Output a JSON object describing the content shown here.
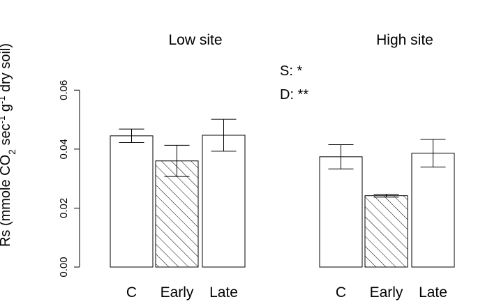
{
  "chart_data": {
    "type": "bar",
    "ylabel": {
      "main": "Rs (mmole CO",
      "sub": "2",
      "mid": " sec",
      "sup": "-1",
      "mid2": " g",
      "sup2": "-1",
      "end": " dry soil)"
    },
    "ylim": [
      0,
      0.07
    ],
    "yticks": [
      "0.00",
      "0.02",
      "0.04",
      "0.06"
    ],
    "ytick_values": [
      0,
      0.02,
      0.04,
      0.06
    ],
    "groups": [
      {
        "name": "Low site",
        "categories": [
          "C",
          "Early",
          "Late"
        ],
        "values": [
          0.0445,
          0.036,
          0.0447
        ],
        "err_low": [
          0.0422,
          0.0307,
          0.0393
        ],
        "err_high": [
          0.0468,
          0.0413,
          0.0501
        ],
        "hatched": [
          false,
          true,
          false
        ]
      },
      {
        "name": "High site",
        "categories": [
          "C",
          "Early",
          "Late"
        ],
        "values": [
          0.0374,
          0.0242,
          0.0386
        ],
        "err_low": [
          0.0333,
          0.0237,
          0.0339
        ],
        "err_high": [
          0.0415,
          0.0247,
          0.0433
        ],
        "hatched": [
          false,
          true,
          false
        ]
      }
    ],
    "annotations": [
      "S: *",
      "D: **"
    ]
  }
}
